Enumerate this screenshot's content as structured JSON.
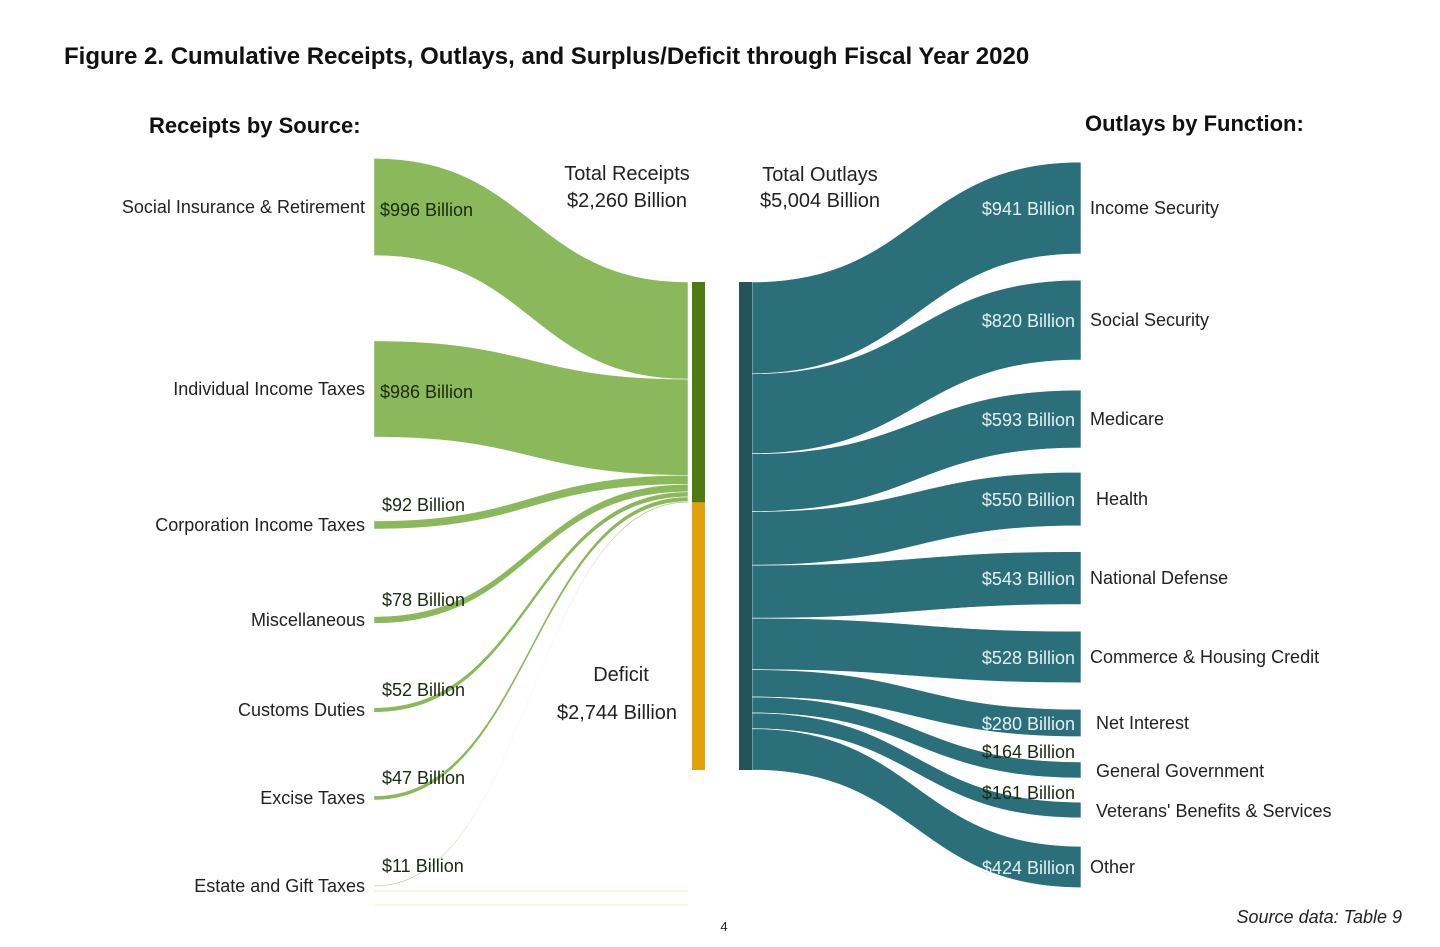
{
  "chart_data": {
    "type": "sankey",
    "title": "Figure 2. Cumulative Receipts, Outlays, and Surplus/Deficit through Fiscal Year 2020",
    "receipts_heading": "Receipts by Source:",
    "outlays_heading": "Outlays by Function:",
    "total_receipts": {
      "label_line1": "Total Receipts",
      "label_line2": "$2,260 Billion",
      "value": 2260
    },
    "total_outlays": {
      "label_line1": "Total Outlays",
      "label_line2": "$5,004 Billion",
      "value": 5004
    },
    "deficit": {
      "label_line1": "Deficit",
      "label_line2": "$2,744 Billion",
      "value": 2744
    },
    "receipts": [
      {
        "name": "Social Insurance & Retirement",
        "value": 996,
        "label": "$996 Billion"
      },
      {
        "name": "Individual Income Taxes",
        "value": 986,
        "label": "$986 Billion"
      },
      {
        "name": "Corporation Income Taxes",
        "value": 92,
        "label": "$92 Billion"
      },
      {
        "name": "Miscellaneous",
        "value": 78,
        "label": "$78 Billion"
      },
      {
        "name": "Customs Duties",
        "value": 52,
        "label": "$52 Billion"
      },
      {
        "name": "Excise Taxes",
        "value": 47,
        "label": "$47 Billion"
      },
      {
        "name": "Estate and Gift Taxes",
        "value": 11,
        "label": "$11 Billion"
      }
    ],
    "outlays": [
      {
        "name": "Income Security",
        "value": 941,
        "label": "$941 Billion"
      },
      {
        "name": "Social Security",
        "value": 820,
        "label": "$820 Billion"
      },
      {
        "name": "Medicare",
        "value": 593,
        "label": "$593 Billion"
      },
      {
        "name": "Health",
        "value": 550,
        "label": "$550 Billion"
      },
      {
        "name": "National Defense",
        "value": 543,
        "label": "$543 Billion"
      },
      {
        "name": "Commerce & Housing Credit",
        "value": 528,
        "label": "$528 Billion"
      },
      {
        "name": "Net Interest",
        "value": 280,
        "label": "$280 Billion"
      },
      {
        "name": "General Government",
        "value": 164,
        "label": "$164 Billion"
      },
      {
        "name": "Veterans' Benefits & Services",
        "value": 161,
        "label": "$161 Billion"
      },
      {
        "name": "Other",
        "value": 424,
        "label": "$424 Billion"
      }
    ],
    "colors": {
      "receipt_flow": "#8cb85c",
      "receipt_bar": "#4e7a12",
      "deficit_bar": "#e0a10a",
      "outlay_flow": "#2a6f7a",
      "outlay_bar": "#24535a"
    },
    "source_note": "Source data: Table 9",
    "page_number": "4"
  }
}
